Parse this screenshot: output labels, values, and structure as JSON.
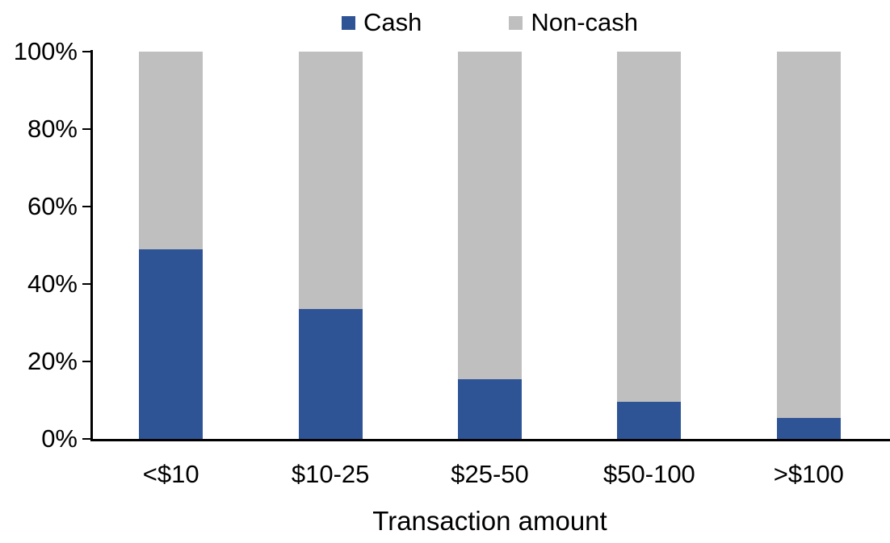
{
  "chart_data": {
    "type": "bar",
    "stacked": true,
    "title": "",
    "xlabel": "Transaction amount",
    "ylabel": "",
    "categories": [
      "<$10",
      "$10-25",
      "$25-50",
      "$50-100",
      ">$100"
    ],
    "series": [
      {
        "name": "Cash",
        "color": "#2F5496",
        "values": [
          49,
          33.5,
          15.5,
          9.5,
          5.5
        ]
      },
      {
        "name": "Non-cash",
        "color": "#BFBFBF",
        "values": [
          51,
          66.5,
          84.5,
          90.5,
          94.5
        ]
      }
    ],
    "ylim": [
      0,
      100
    ],
    "ytick_labels": [
      "0%",
      "20%",
      "40%",
      "60%",
      "80%",
      "100%"
    ],
    "legend_position": "top",
    "grid": false,
    "axis_color": "#000000",
    "background_color": "#FFFFFF"
  }
}
